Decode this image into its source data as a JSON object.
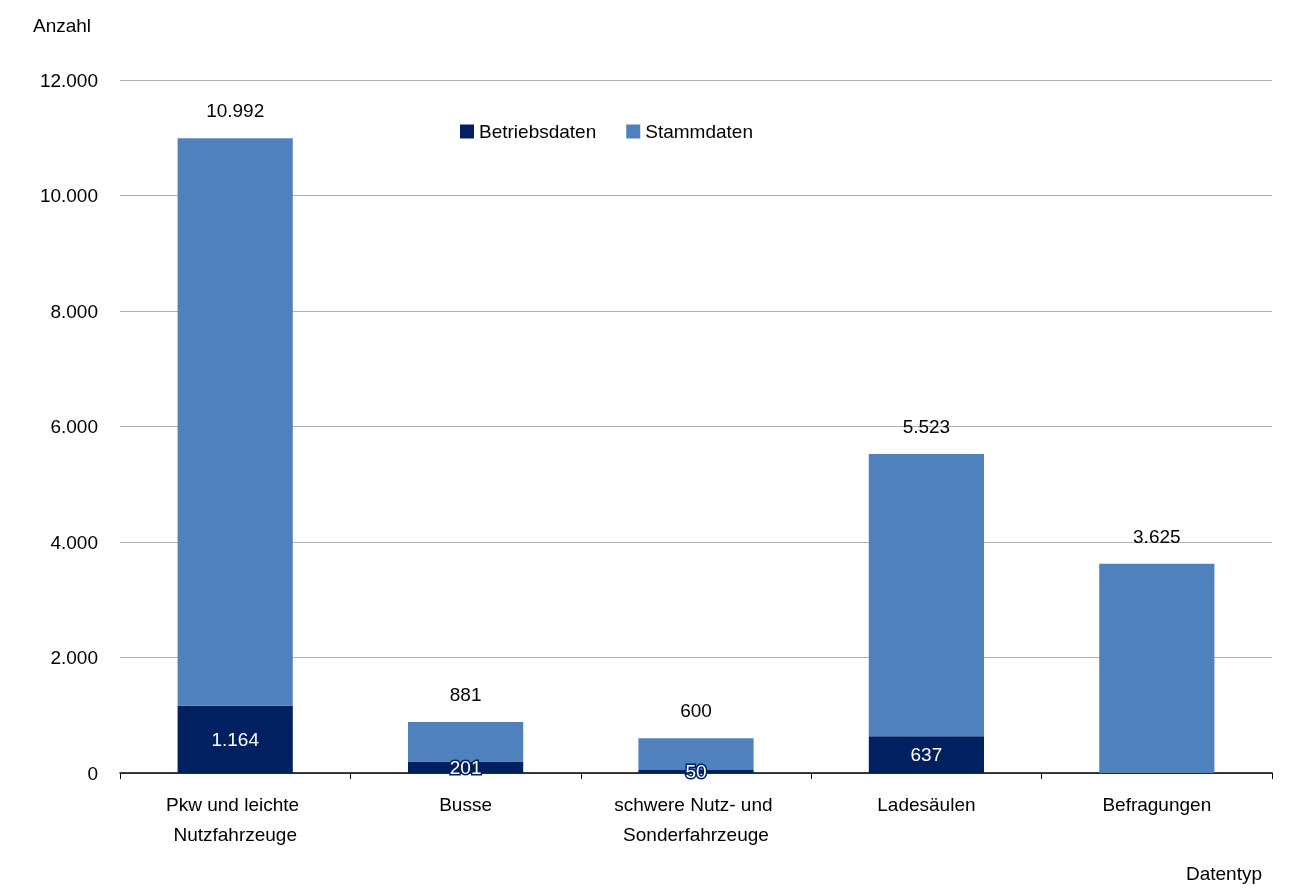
{
  "chart_data": {
    "type": "bar",
    "stacked": true,
    "ylabel": "Anzahl",
    "xlabel": "Datentyp",
    "categories": [
      "Pkw und leichte Nutzfahrzeuge",
      "Busse",
      "schwere Nutz- und Sonderfahrzeuge",
      "Ladesäulen",
      "Befragungen"
    ],
    "series": [
      {
        "name": "Betriebsdaten",
        "color": "#002060",
        "values": [
          1164,
          201,
          50,
          637,
          null
        ],
        "value_labels": [
          "1.164",
          "201",
          "50",
          "637",
          null
        ]
      },
      {
        "name": "Stammdaten",
        "color": "#4f81bd",
        "values": [
          9828,
          680,
          550,
          4886,
          3625
        ]
      }
    ],
    "totals": [
      "10.992",
      "881",
      "600",
      "5.523",
      "3.625"
    ],
    "ylim": [
      0,
      12000
    ],
    "yticks": [
      0,
      {
        "value": 2000,
        "label": "2.000"
      },
      {
        "value": 4000,
        "label": "4.000"
      },
      {
        "value": 6000,
        "label": "6.000"
      },
      {
        "value": 8000,
        "label": "8.000"
      },
      {
        "value": 10000,
        "label": "10.000"
      },
      {
        "value": 12000,
        "label": "12.000"
      }
    ],
    "grid": "y",
    "legend": "top"
  }
}
